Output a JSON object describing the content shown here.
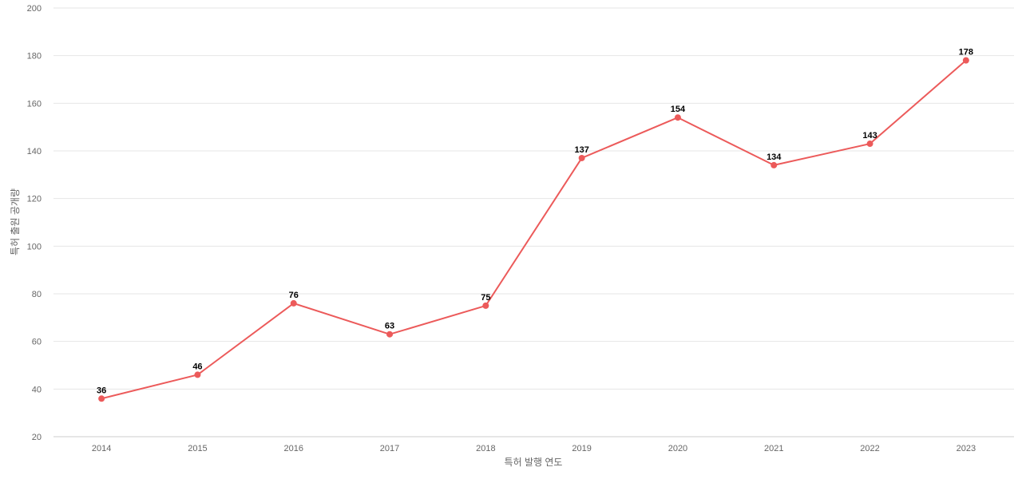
{
  "chart_data": {
    "type": "line",
    "title": "",
    "xlabel": "특허 발행 연도",
    "ylabel": "특허 출원 공개량",
    "categories": [
      "2014",
      "2015",
      "2016",
      "2017",
      "2018",
      "2019",
      "2020",
      "2021",
      "2022",
      "2023"
    ],
    "series": [
      {
        "values": [
          36,
          46,
          76,
          63,
          75,
          137,
          154,
          134,
          143,
          178
        ],
        "color": "#ec5a5a"
      }
    ],
    "ylim": [
      20,
      200
    ],
    "yticks": [
      20,
      40,
      60,
      80,
      100,
      120,
      140,
      160,
      180,
      200
    ],
    "grid": true,
    "data_labels": true,
    "legend": "none"
  }
}
